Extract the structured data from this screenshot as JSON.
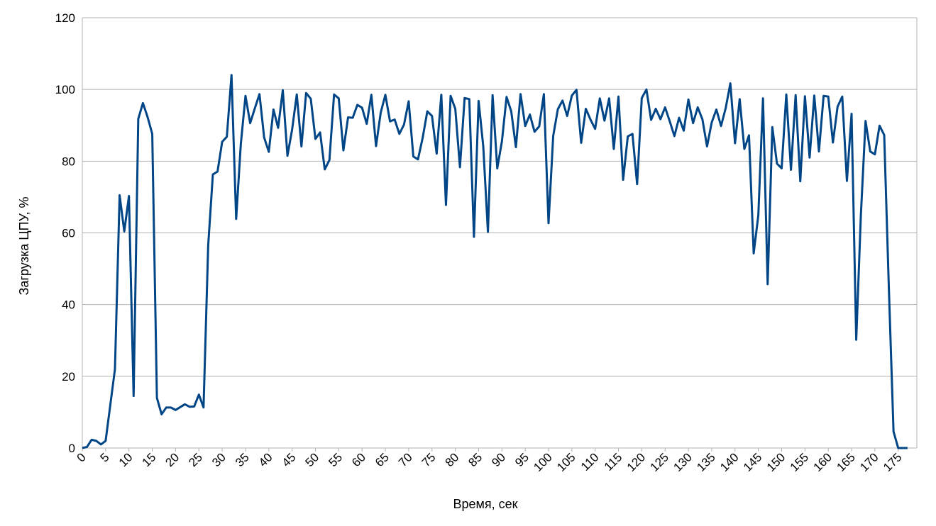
{
  "chart_data": {
    "type": "line",
    "xlabel": "Время, сек",
    "ylabel": "Загрузка ЦПУ, %",
    "xlim": [
      0,
      179
    ],
    "ylim": [
      0,
      120
    ],
    "yticks": [
      0,
      20,
      40,
      60,
      80,
      100,
      120
    ],
    "xticks": [
      0,
      5,
      10,
      15,
      20,
      25,
      30,
      35,
      40,
      45,
      50,
      55,
      60,
      65,
      70,
      75,
      80,
      85,
      90,
      95,
      100,
      105,
      110,
      115,
      120,
      125,
      130,
      135,
      140,
      145,
      150,
      155,
      160,
      165,
      170,
      175
    ],
    "grid": true,
    "line_color": "#004586",
    "series": [
      {
        "values": [
          0,
          0.3,
          2.3,
          2,
          1,
          2,
          12,
          22,
          70.5,
          60.4,
          70.3,
          14.5,
          91.8,
          96.2,
          92.3,
          87.6,
          14,
          9.4,
          11.3,
          11.3,
          10.6,
          11.4,
          12.2,
          11.5,
          11.6,
          14.9,
          11.3,
          56.5,
          76.3,
          77.1,
          85.4,
          86.8,
          104,
          63.9,
          84.8,
          98.2,
          90.6,
          94.7,
          98.7,
          86.6,
          82.6,
          94.4,
          89.3,
          99.8,
          81.5,
          88.8,
          98.6,
          84.1,
          99,
          97.4,
          86.2,
          88,
          77.7,
          80.3,
          98.6,
          97.5,
          83,
          92.2,
          92.1,
          95.7,
          94.9,
          90.4,
          98.5,
          84.2,
          93.5,
          98.5,
          91.1,
          91.6,
          87.6,
          90.2,
          96.7,
          81.3,
          80.5,
          86.5,
          93.9,
          92.6,
          82.1,
          98.5,
          67.8,
          98.2,
          94.6,
          78.3,
          97.6,
          97.3,
          58.9,
          96.8,
          84.1,
          60.3,
          98.4,
          78,
          85.5,
          97.9,
          93.9,
          83.9,
          98.7,
          89.8,
          93,
          88.2,
          89.7,
          98.7,
          62.7,
          87,
          94.5,
          96.9,
          92.6,
          98.3,
          99.9,
          85.1,
          94.6,
          91.6,
          89,
          97.5,
          91.3,
          97.5,
          83.4,
          98,
          74.8,
          86.9,
          87.6,
          73.6,
          97.6,
          100,
          91.5,
          94.6,
          91.7,
          95,
          91.1,
          87,
          92.1,
          88.5,
          97.2,
          90.6,
          95,
          91.7,
          84.1,
          90.8,
          94.4,
          89.8,
          94.8,
          101.7,
          85,
          97.3,
          83.4,
          87.2,
          54.3,
          64.9,
          97.5,
          45.7,
          89.5,
          79.3,
          78,
          98.6,
          77.6,
          98.4,
          74.4,
          98.1,
          81,
          98.3,
          82.7,
          98.2,
          98,
          85.2,
          95.2,
          98,
          74.5,
          93.2,
          30.2,
          65.1,
          91.2,
          82.7,
          81.9,
          89.9,
          87.3,
          44.5,
          4.6,
          0,
          0,
          0
        ]
      }
    ]
  }
}
